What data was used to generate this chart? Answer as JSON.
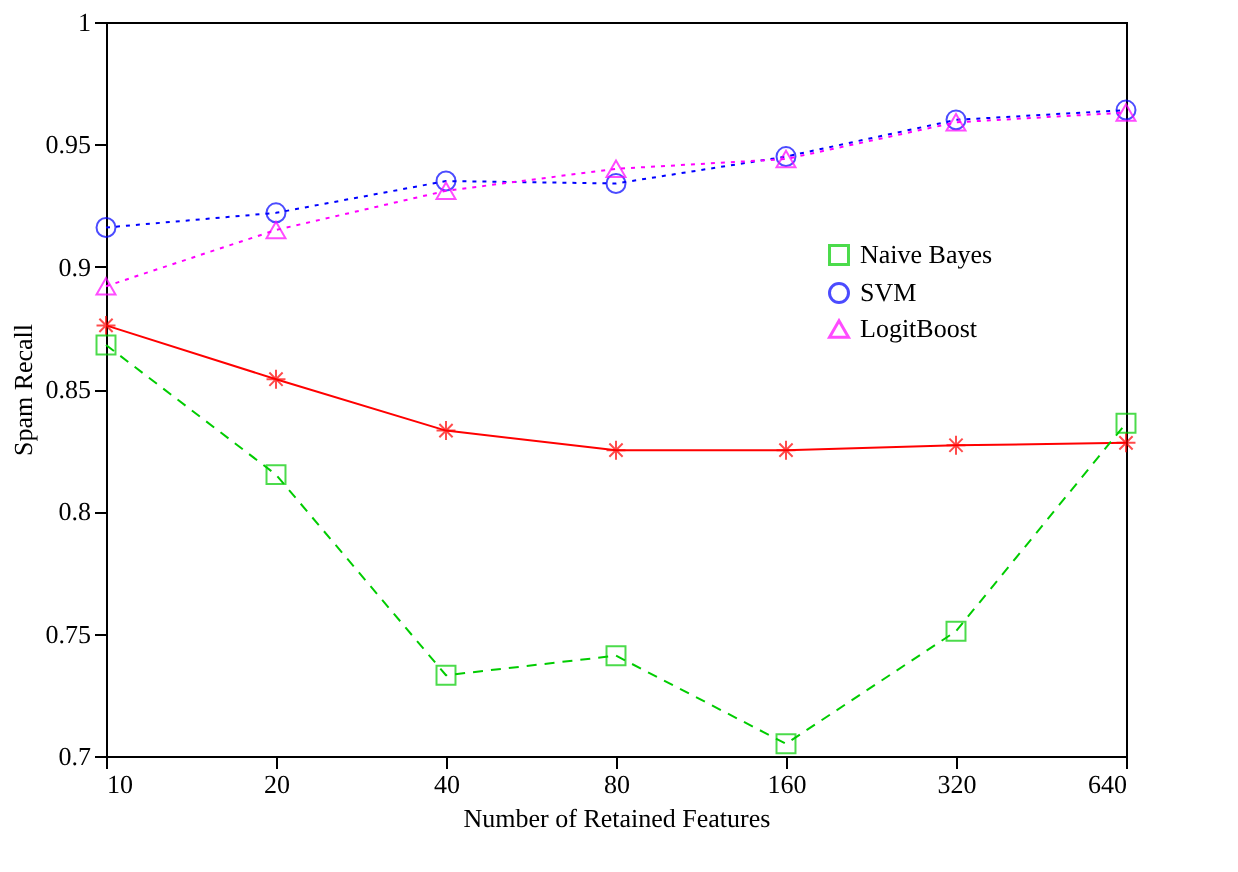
{
  "chart_data": {
    "type": "line",
    "xlabel": "Number of Retained Features",
    "ylabel": "Spam Recall",
    "categories": [
      "10",
      "20",
      "40",
      "80",
      "160",
      "320",
      "640"
    ],
    "series": [
      {
        "color": "#ff0000",
        "line_style": "solid",
        "marker": "cross",
        "values": [
          0.876,
          0.854,
          0.833,
          0.825,
          0.825,
          0.827,
          0.828
        ]
      },
      {
        "name": "Naive Bayes",
        "color": "#00cc00",
        "line_style": "dashed",
        "marker": "square",
        "values": [
          0.868,
          0.815,
          0.733,
          0.741,
          0.705,
          0.751,
          0.836
        ]
      },
      {
        "name": "SVM",
        "color": "#0000ff",
        "line_style": "dotted",
        "marker": "circle",
        "values": [
          0.916,
          0.922,
          0.935,
          0.934,
          0.945,
          0.96,
          0.964
        ]
      },
      {
        "name": "LogitBoost",
        "color": "#ff00ff",
        "line_style": "dotted",
        "marker": "triangle",
        "values": [
          0.892,
          0.915,
          0.931,
          0.94,
          0.944,
          0.959,
          0.963
        ]
      }
    ],
    "ylim": [
      0.7,
      1
    ],
    "yticks": [
      0.7,
      0.75,
      0.8,
      0.85,
      0.9,
      0.95,
      1
    ],
    "grid": false,
    "legend": "top right"
  }
}
